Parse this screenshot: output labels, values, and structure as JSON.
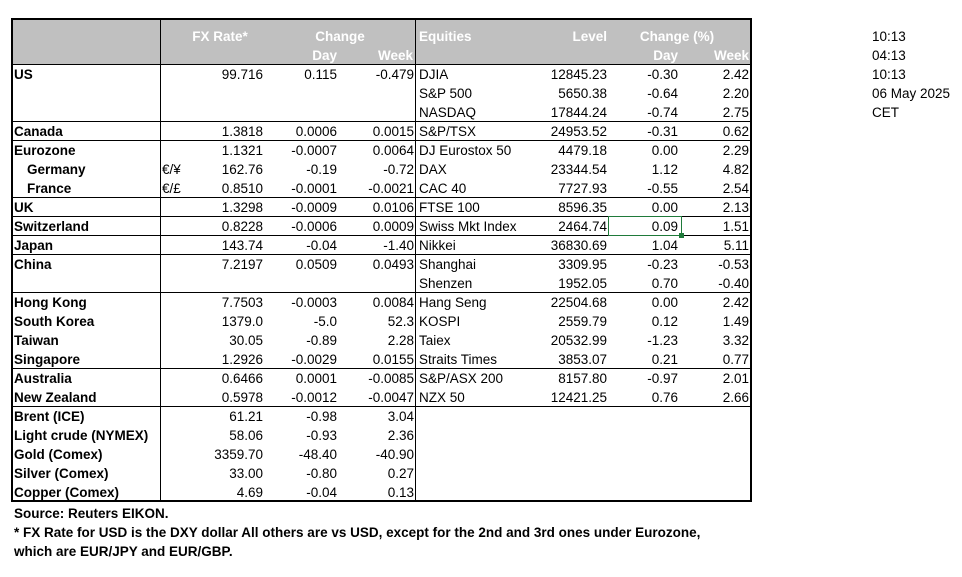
{
  "header": {
    "fx_rate": "FX Rate*",
    "change": "Change",
    "day": "Day",
    "week": "Week",
    "equities": "Equities",
    "level": "Level",
    "change_pct": "Change (%)",
    "eq_day": "Day",
    "eq_week": "Week"
  },
  "rows": [
    {
      "country": "US",
      "bold": true,
      "indent": false,
      "sym": "",
      "fx": "99.716",
      "day": "0.115",
      "week": "-0.479",
      "eq": "DJIA",
      "level": "12845.23",
      "eday": "-0.30",
      "eweek": "2.42"
    },
    {
      "country": "",
      "bold": true,
      "indent": false,
      "sym": "",
      "fx": "",
      "day": "",
      "week": "",
      "eq": "S&P 500",
      "level": "5650.38",
      "eday": "-0.64",
      "eweek": "2.20"
    },
    {
      "country": "",
      "bold": true,
      "indent": false,
      "sym": "",
      "fx": "",
      "day": "",
      "week": "",
      "eq": "NASDAQ",
      "level": "17844.24",
      "eday": "-0.74",
      "eweek": "2.75"
    },
    {
      "country": "Canada",
      "bold": true,
      "indent": false,
      "sym": "",
      "fx": "1.3818",
      "day": "0.0006",
      "week": "0.0015",
      "eq": "S&P/TSX",
      "level": "24953.52",
      "eday": "-0.31",
      "eweek": "0.62"
    },
    {
      "country": "Eurozone",
      "bold": true,
      "indent": false,
      "sym": "",
      "fx": "1.1321",
      "day": "-0.0007",
      "week": "0.0064",
      "eq": "DJ Eurostox 50",
      "level": "4479.18",
      "eday": "0.00",
      "eweek": "2.29"
    },
    {
      "country": "Germany",
      "bold": true,
      "indent": true,
      "sym": "€/¥",
      "fx": "162.76",
      "day": "-0.19",
      "week": "-0.72",
      "eq": "DAX",
      "level": "23344.54",
      "eday": "1.12",
      "eweek": "4.82"
    },
    {
      "country": "France",
      "bold": true,
      "indent": true,
      "sym": "€/£",
      "fx": "0.8510",
      "day": "-0.0001",
      "week": "-0.0021",
      "eq": "CAC 40",
      "level": "7727.93",
      "eday": "-0.55",
      "eweek": "2.54"
    },
    {
      "country": "UK",
      "bold": true,
      "indent": false,
      "sym": "",
      "fx": "1.3298",
      "day": "-0.0009",
      "week": "0.0106",
      "eq": "FTSE 100",
      "level": "8596.35",
      "eday": "0.00",
      "eweek": "2.13"
    },
    {
      "country": "Switzerland",
      "bold": true,
      "indent": false,
      "sym": "",
      "fx": "0.8228",
      "day": "-0.0006",
      "week": "0.0009",
      "eq": "Swiss Mkt Index",
      "level": "2464.74",
      "eday": "0.09",
      "eweek": "1.51"
    },
    {
      "country": "Japan",
      "bold": true,
      "indent": false,
      "sym": "",
      "fx": "143.74",
      "day": "-0.04",
      "week": "-1.40",
      "eq": "Nikkei",
      "level": "36830.69",
      "eday": "1.04",
      "eweek": "5.11"
    },
    {
      "country": "China",
      "bold": true,
      "indent": false,
      "sym": "",
      "fx": "7.2197",
      "day": "0.0509",
      "week": "0.0493",
      "eq": "Shanghai",
      "level": "3309.95",
      "eday": "-0.23",
      "eweek": "-0.53"
    },
    {
      "country": "",
      "bold": true,
      "indent": false,
      "sym": "",
      "fx": "",
      "day": "",
      "week": "",
      "eq": "Shenzen",
      "level": "1952.05",
      "eday": "0.70",
      "eweek": "-0.40"
    },
    {
      "country": "Hong Kong",
      "bold": true,
      "indent": false,
      "sym": "",
      "fx": "7.7503",
      "day": "-0.0003",
      "week": "0.0084",
      "eq": "Hang Seng",
      "level": "22504.68",
      "eday": "0.00",
      "eweek": "2.42"
    },
    {
      "country": "South Korea",
      "bold": true,
      "indent": false,
      "sym": "",
      "fx": "1379.0",
      "day": "-5.0",
      "week": "52.3",
      "eq": "KOSPI",
      "level": "2559.79",
      "eday": "0.12",
      "eweek": "1.49"
    },
    {
      "country": "Taiwan",
      "bold": true,
      "indent": false,
      "sym": "",
      "fx": "30.05",
      "day": "-0.89",
      "week": "2.28",
      "eq": "Taiex",
      "level": "20532.99",
      "eday": "-1.23",
      "eweek": "3.32"
    },
    {
      "country": "Singapore",
      "bold": true,
      "indent": false,
      "sym": "",
      "fx": "1.2926",
      "day": "-0.0029",
      "week": "0.0155",
      "eq": "Straits Times",
      "level": "3853.07",
      "eday": "0.21",
      "eweek": "0.77"
    },
    {
      "country": "Australia",
      "bold": true,
      "indent": false,
      "sym": "",
      "fx": "0.6466",
      "day": "0.0001",
      "week": "-0.0085",
      "eq": "S&P/ASX  200",
      "level": "8157.80",
      "eday": "-0.97",
      "eweek": "2.01"
    },
    {
      "country": "New Zealand",
      "bold": true,
      "indent": false,
      "sym": "",
      "fx": "0.5978",
      "day": "-0.0012",
      "week": "-0.0047",
      "eq": "NZX 50",
      "level": "12421.25",
      "eday": "0.76",
      "eweek": "2.66"
    },
    {
      "country": "Brent (ICE)",
      "bold": true,
      "indent": false,
      "sym": "",
      "fx": "61.21",
      "day": "-0.98",
      "week": "3.04",
      "eq": "",
      "level": "",
      "eday": "",
      "eweek": ""
    },
    {
      "country": "Light crude (NYMEX)",
      "bold": true,
      "indent": false,
      "sym": "",
      "fx": "58.06",
      "day": "-0.93",
      "week": "2.36",
      "eq": "",
      "level": "",
      "eday": "",
      "eweek": ""
    },
    {
      "country": "Gold (Comex)",
      "bold": true,
      "indent": false,
      "sym": "",
      "fx": "3359.70",
      "day": "-48.40",
      "week": "-40.90",
      "eq": "",
      "level": "",
      "eday": "",
      "eweek": ""
    },
    {
      "country": "Silver (Comex)",
      "bold": true,
      "indent": false,
      "sym": "",
      "fx": "33.00",
      "day": "-0.80",
      "week": "0.27",
      "eq": "",
      "level": "",
      "eday": "",
      "eweek": ""
    },
    {
      "country": "Copper (Comex)",
      "bold": true,
      "indent": false,
      "sym": "",
      "fx": "4.69",
      "day": "-0.04",
      "week": "0.13",
      "eq": "",
      "level": "",
      "eday": "",
      "eweek": ""
    }
  ],
  "side": {
    "line1": "10:13",
    "line2": "04:13",
    "line3": "10:13",
    "date": "06 May 2025",
    "tz": "CET"
  },
  "footer": {
    "source": "Source:  Reuters EIKON.",
    "note1": " * FX Rate for USD is the DXY dollar  All others are vs USD, except for the 2nd and 3rd ones under Eurozone,",
    "note2": "  which are EUR/JPY and EUR/GBP."
  },
  "colors": {
    "header_bg": "#c0c0c0",
    "selection": "#1f7a3a"
  }
}
